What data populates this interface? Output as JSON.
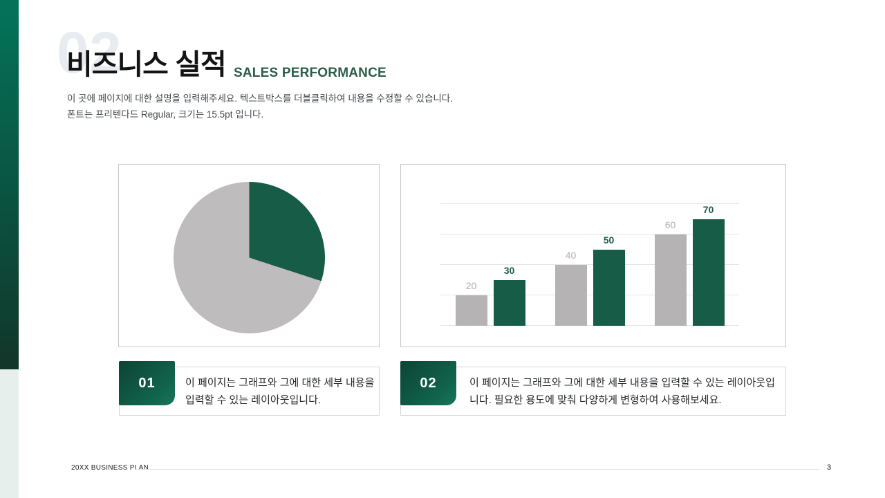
{
  "slide": {
    "watermark": "02",
    "title": "비즈니스 실적",
    "subtitle": "SALES PERFORMANCE",
    "description_line1": "이 곳에 페이지에 대한 설명을 입력해주세요. 텍스트박스를 더블클릭하여 내용을 수정할 수 있습니다.",
    "description_line2": "폰트는 프리텐다드 Regular, 크기는 15.5pt 입니다."
  },
  "chart_data": [
    {
      "type": "pie",
      "title": "",
      "slices": [
        {
          "name": "green-slice",
          "value": 30,
          "color": "#175C47"
        },
        {
          "name": "gray-slice",
          "value": 70,
          "color": "#BEBCBC"
        }
      ],
      "start_angle_deg": 0,
      "direction": "clockwise",
      "legend": "none",
      "data_labels": false
    },
    {
      "type": "bar",
      "title": "",
      "categories": [
        "",
        "",
        ""
      ],
      "series": [
        {
          "name": "gray",
          "values": [
            20,
            40,
            60
          ],
          "color": "#B5B3B3",
          "label_color": "#B0AEAE",
          "label_weight": "400"
        },
        {
          "name": "green",
          "values": [
            30,
            50,
            70
          ],
          "color": "#175C47",
          "label_color": "#1D5C46",
          "label_weight": "700"
        }
      ],
      "ylim": [
        0,
        80
      ],
      "gridlines": [
        0,
        20,
        40,
        60,
        80
      ],
      "gridline_color": "#E4E4E4",
      "legend": "none",
      "data_labels": true,
      "xlabel": "",
      "ylabel": ""
    }
  ],
  "captions": [
    {
      "number": "01",
      "text": "이 페이지는 그래프와 그에 대한 세부 내용을 입력할 수 있는 레이아웃입니다."
    },
    {
      "number": "02",
      "text": "이 페이지는 그래프와 그에 대한 세부 내용을 입력할 수 있는 레이아웃입니다. 필요한 용도에 맞춰 다양하게 변형하여 사용해보세요."
    }
  ],
  "footer": {
    "left_label": "20XX BUSINESS PLAN",
    "page_number": "3"
  },
  "colors": {
    "accent_green": "#175C47",
    "badge_green_dark": "#0C4434",
    "badge_green_light": "#17785C",
    "strip_green_top": "#04735A",
    "strip_green_bottom": "#123629",
    "strip_light": "#E6EFEC",
    "neutral_gray": "#B5B3B3",
    "watermark_gray": "#E8EBF0",
    "panel_border": "#C6C6C6"
  }
}
